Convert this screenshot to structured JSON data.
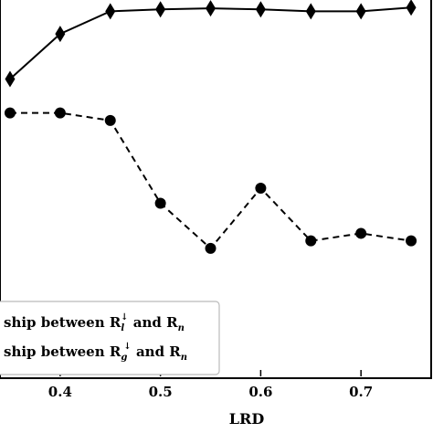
{
  "chart_data": {
    "type": "line",
    "title": "",
    "xlabel": "LRD",
    "ylabel": "",
    "xlim": [
      0.34,
      0.77
    ],
    "ylim": [
      0,
      1
    ],
    "x_ticks": [
      0.4,
      0.5,
      0.6,
      0.7
    ],
    "x_tick_labels": [
      "0.4",
      "0.5",
      "0.6",
      "0.7"
    ],
    "grid": false,
    "legend_position": "bottom-left",
    "series": [
      {
        "marker": "diamond",
        "line_style": "solid",
        "x": [
          0.35,
          0.4,
          0.45,
          0.5,
          0.55,
          0.6,
          0.65,
          0.7,
          0.75
        ],
        "y": [
          0.79,
          0.91,
          0.97,
          0.975,
          0.978,
          0.975,
          0.97,
          0.97,
          0.98
        ]
      },
      {
        "marker": "circle",
        "line_style": "dashed",
        "x": [
          0.35,
          0.4,
          0.45,
          0.5,
          0.55,
          0.6,
          0.65,
          0.7,
          0.75
        ],
        "y": [
          0.7,
          0.7,
          0.68,
          0.46,
          0.34,
          0.5,
          0.36,
          0.38,
          0.36
        ]
      }
    ],
    "legend": [
      {
        "text_before": "ship between R",
        "sub": "l",
        "sup": "↓",
        "text_mid": " and R",
        "sub2": "n",
        "marker": "circle",
        "line_style": "dashed"
      },
      {
        "text_before": "ship between R",
        "sub": "g",
        "sup": "↓",
        "text_mid": " and R",
        "sub2": "n",
        "marker": "circle",
        "line_style": "dashed"
      }
    ]
  }
}
